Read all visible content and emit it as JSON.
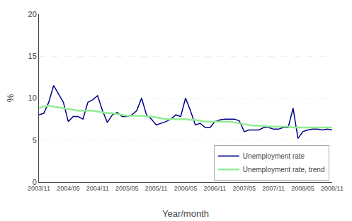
{
  "chart_data": {
    "type": "line",
    "xlabel": "Year/month",
    "ylabel": "%",
    "categories": [
      "2003/11",
      null,
      null,
      null,
      null,
      null,
      "2004/05",
      null,
      null,
      null,
      null,
      null,
      "2004/11",
      null,
      null,
      null,
      null,
      null,
      "2005/05",
      null,
      null,
      null,
      null,
      null,
      "2005/11",
      null,
      null,
      null,
      null,
      null,
      "2006/05",
      null,
      null,
      null,
      null,
      null,
      "2006/11",
      null,
      null,
      null,
      null,
      null,
      "2007/05",
      null,
      null,
      null,
      null,
      null,
      "2007/11",
      null,
      null,
      null,
      null,
      null,
      "2008/05",
      null,
      null,
      null,
      null,
      null,
      "2008/11"
    ],
    "series": [
      {
        "name": "Unemployment rate",
        "color": "#00008B",
        "values": [
          8.0,
          8.2,
          9.5,
          11.5,
          10.5,
          9.5,
          7.2,
          7.8,
          7.8,
          7.5,
          9.5,
          9.8,
          10.3,
          8.5,
          7.1,
          8.0,
          8.3,
          7.8,
          7.8,
          8.0,
          8.5,
          10.0,
          8.0,
          7.5,
          6.8,
          7.0,
          7.2,
          7.5,
          8.0,
          7.8,
          10.0,
          8.5,
          6.8,
          7.0,
          6.5,
          6.5,
          7.2,
          7.4,
          7.5,
          7.5,
          7.5,
          7.3,
          6.0,
          6.2,
          6.2,
          6.2,
          6.5,
          6.5,
          6.3,
          6.3,
          6.5,
          6.5,
          8.8,
          5.2,
          6.0,
          6.2,
          6.3,
          6.3,
          6.2,
          6.3,
          6.2
        ]
      },
      {
        "name": "Unemployment rate, trend",
        "color": "#90EE90",
        "values": [
          8.8,
          9.0,
          9.1,
          9.0,
          8.9,
          8.8,
          8.7,
          8.6,
          8.5,
          8.5,
          8.5,
          8.5,
          8.4,
          8.3,
          8.2,
          8.2,
          8.1,
          8.0,
          7.9,
          7.9,
          7.9,
          7.9,
          7.8,
          7.8,
          7.7,
          7.6,
          7.5,
          7.5,
          7.5,
          7.5,
          7.5,
          7.4,
          7.4,
          7.3,
          7.2,
          7.2,
          7.2,
          7.2,
          7.2,
          7.2,
          7.1,
          7.0,
          6.9,
          6.8,
          6.7,
          6.7,
          6.7,
          6.6,
          6.6,
          6.6,
          6.6,
          6.6,
          6.5,
          6.5,
          6.5,
          6.5,
          6.5,
          6.5,
          6.5,
          6.5,
          6.5
        ]
      }
    ],
    "ylim": [
      0,
      20
    ],
    "yticks": [
      0,
      5,
      10,
      15,
      20
    ],
    "grid": true,
    "legend": "lower right"
  }
}
